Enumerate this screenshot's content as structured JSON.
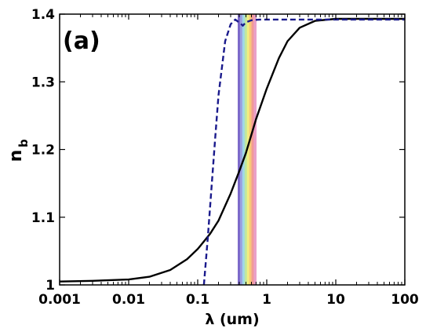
{
  "chart_data": {
    "type": "line",
    "panel_label": "(a)",
    "xlabel": "λ (um)",
    "ylabel_main": "n",
    "ylabel_sub": "b",
    "x_scale": "log",
    "xlim": [
      0.001,
      100
    ],
    "ylim": [
      1,
      1.4
    ],
    "x_ticks": [
      {
        "value": 0.001,
        "label": "0.001"
      },
      {
        "value": 0.01,
        "label": "0.01"
      },
      {
        "value": 0.1,
        "label": "0.1"
      },
      {
        "value": 1,
        "label": "1"
      },
      {
        "value": 10,
        "label": "10"
      },
      {
        "value": 100,
        "label": "100"
      }
    ],
    "y_ticks": [
      {
        "value": 1,
        "label": "1"
      },
      {
        "value": 1.1,
        "label": "1.1"
      },
      {
        "value": 1.2,
        "label": "1.2"
      },
      {
        "value": 1.3,
        "label": "1.3"
      },
      {
        "value": 1.4,
        "label": "1.4"
      }
    ],
    "grid": false,
    "visible_band": {
      "x_range": [
        0.38,
        0.7
      ],
      "colors": [
        "#7b68c9",
        "#9aa0e0",
        "#9fd8e8",
        "#bfe8a0",
        "#f2ee80",
        "#f7c878",
        "#f29a96",
        "#e9a0c8"
      ]
    },
    "series": [
      {
        "style": "solid",
        "color": "#000000",
        "points": [
          [
            0.001,
            1.005
          ],
          [
            0.003,
            1.006
          ],
          [
            0.01,
            1.008
          ],
          [
            0.02,
            1.012
          ],
          [
            0.04,
            1.022
          ],
          [
            0.07,
            1.038
          ],
          [
            0.1,
            1.053
          ],
          [
            0.15,
            1.075
          ],
          [
            0.2,
            1.095
          ],
          [
            0.3,
            1.135
          ],
          [
            0.4,
            1.168
          ],
          [
            0.5,
            1.195
          ],
          [
            0.7,
            1.245
          ],
          [
            1.0,
            1.29
          ],
          [
            1.5,
            1.335
          ],
          [
            2.0,
            1.36
          ],
          [
            3.0,
            1.38
          ],
          [
            5.0,
            1.39
          ],
          [
            10,
            1.393
          ],
          [
            100,
            1.393
          ]
        ]
      },
      {
        "style": "dashed",
        "color": "#1a1a8c",
        "points": [
          [
            0.123,
            1.0
          ],
          [
            0.14,
            1.07
          ],
          [
            0.16,
            1.15
          ],
          [
            0.18,
            1.22
          ],
          [
            0.2,
            1.28
          ],
          [
            0.25,
            1.36
          ],
          [
            0.3,
            1.385
          ],
          [
            0.35,
            1.392
          ],
          [
            0.42,
            1.386
          ],
          [
            0.45,
            1.383
          ],
          [
            0.5,
            1.388
          ],
          [
            0.6,
            1.391
          ],
          [
            0.8,
            1.392
          ],
          [
            1.0,
            1.392
          ],
          [
            100,
            1.392
          ]
        ]
      }
    ]
  }
}
